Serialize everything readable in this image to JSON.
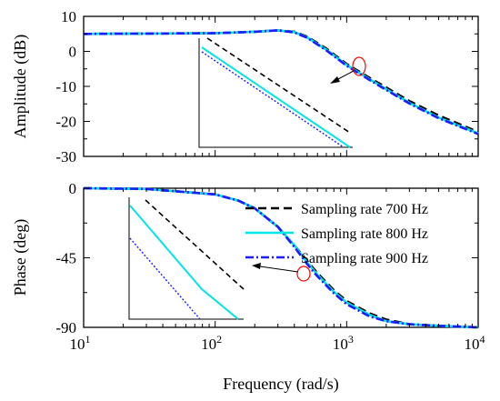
{
  "chart_data": [
    {
      "type": "line",
      "ylabel": "Amplitude (dB)",
      "xlabel": "",
      "xscale": "log",
      "xlim": [
        10,
        10000
      ],
      "ylim": [
        -30,
        10
      ],
      "yticks": [
        10,
        0,
        -10,
        -20,
        -30
      ],
      "ytick_labels": [
        "10",
        "0",
        "-10",
        "-20",
        "-30"
      ],
      "grid": false,
      "series": [
        {
          "color": "#000000",
          "dash": "dashed",
          "x": [
            10,
            30,
            100,
            200,
            300,
            400,
            500,
            700,
            1000,
            1500,
            2000,
            3000,
            5000,
            10000
          ],
          "y": [
            5.0,
            5.1,
            5.2,
            5.6,
            6.0,
            5.6,
            4.2,
            0.8,
            -3.6,
            -7.6,
            -10.3,
            -14.2,
            -18.3,
            -23.0
          ]
        },
        {
          "color": "#00e5e5",
          "dash": "solid",
          "x": [
            10,
            30,
            100,
            200,
            300,
            400,
            500,
            700,
            1000,
            1500,
            2000,
            3000,
            5000,
            10000
          ],
          "y": [
            5.0,
            5.1,
            5.2,
            5.6,
            6.0,
            5.5,
            4.0,
            0.5,
            -3.9,
            -8.0,
            -10.8,
            -14.7,
            -18.9,
            -23.4
          ]
        },
        {
          "color": "#1c1cff",
          "dash": "dashdot",
          "x": [
            10,
            30,
            100,
            200,
            300,
            400,
            500,
            700,
            1000,
            1500,
            2000,
            3000,
            5000,
            10000
          ],
          "y": [
            5.0,
            5.1,
            5.2,
            5.6,
            6.0,
            5.4,
            3.9,
            0.3,
            -4.1,
            -8.2,
            -11.0,
            -14.9,
            -19.1,
            -23.6
          ]
        }
      ]
    },
    {
      "type": "line",
      "ylabel": "Phase (deg)",
      "xlabel": "Frequency (rad/s)",
      "xscale": "log",
      "xlim": [
        10,
        10000
      ],
      "ylim": [
        -90,
        0
      ],
      "yticks": [
        0,
        -45,
        -90
      ],
      "ytick_labels": [
        "0",
        "-45",
        "-90"
      ],
      "xticks": [
        10,
        100,
        1000,
        10000
      ],
      "xtick_labels": [
        {
          "base": "10",
          "exp": "1"
        },
        {
          "base": "10",
          "exp": "2"
        },
        {
          "base": "10",
          "exp": "3"
        },
        {
          "base": "10",
          "exp": "4"
        }
      ],
      "legend": "top-right",
      "grid": false,
      "series": [
        {
          "name": "Sampling rate 700 Hz",
          "color": "#000000",
          "dash": "dashed",
          "x": [
            10,
            30,
            100,
            150,
            200,
            300,
            400,
            500,
            600,
            800,
            1000,
            1500,
            2000,
            3000,
            5000,
            10000
          ],
          "y": [
            0,
            -0.5,
            -4,
            -8,
            -13,
            -25,
            -37,
            -47,
            -55,
            -66,
            -73,
            -81,
            -85,
            -88,
            -89,
            -90
          ]
        },
        {
          "name": "Sampling rate 800 Hz",
          "color": "#00e5e5",
          "dash": "solid",
          "x": [
            10,
            30,
            100,
            150,
            200,
            300,
            400,
            500,
            600,
            800,
            1000,
            1500,
            2000,
            3000,
            5000,
            10000
          ],
          "y": [
            0,
            -0.5,
            -4,
            -8,
            -13,
            -25,
            -37,
            -48,
            -56,
            -67,
            -74,
            -82,
            -86,
            -88,
            -89,
            -90
          ]
        },
        {
          "name": "Sampling rate 900 Hz",
          "color": "#1c1cff",
          "dash": "dashdot",
          "x": [
            10,
            30,
            100,
            150,
            200,
            300,
            400,
            500,
            600,
            800,
            1000,
            1500,
            2000,
            3000,
            5000,
            10000
          ],
          "y": [
            0,
            -0.5,
            -4,
            -8,
            -13,
            -25,
            -38,
            -49,
            -57,
            -68,
            -75,
            -83,
            -86,
            -88,
            -89,
            -90
          ]
        }
      ]
    }
  ]
}
